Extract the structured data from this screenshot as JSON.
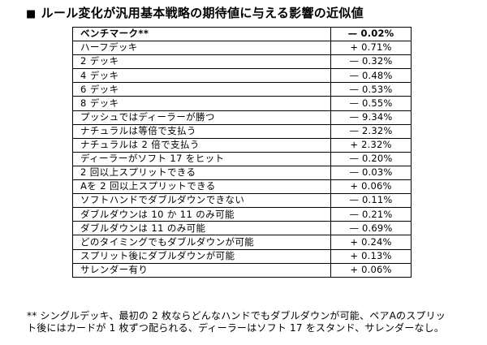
{
  "title": {
    "bullet": "■",
    "text": "ルール変化が汎用基本戦略の期待値に与える影響の近似値"
  },
  "table": {
    "rows": [
      {
        "label": "ベンチマーク**",
        "value": "— 0.02%",
        "bold": true
      },
      {
        "label": "ハーフデッキ",
        "value": "+ 0.71%",
        "bold": false
      },
      {
        "label": "2 デッキ",
        "value": "— 0.32%",
        "bold": false
      },
      {
        "label": "4 デッキ",
        "value": "— 0.48%",
        "bold": false
      },
      {
        "label": "6 デッキ",
        "value": "— 0.53%",
        "bold": false
      },
      {
        "label": "8 デッキ",
        "value": "— 0.55%",
        "bold": false
      },
      {
        "label": "プッシュではディーラーが勝つ",
        "value": "— 9.34%",
        "bold": false
      },
      {
        "label": "ナチュラルは等倍で支払う",
        "value": "— 2.32%",
        "bold": false
      },
      {
        "label": "ナチュラルは 2 倍で支払う",
        "value": "+ 2.32%",
        "bold": false
      },
      {
        "label": "ディーラーがソフト 17 をヒット",
        "value": "— 0.20%",
        "bold": false
      },
      {
        "label": "2 回以上スプリットできる",
        "value": "— 0.03%",
        "bold": false
      },
      {
        "label": "Aを 2 回以上スプリットできる",
        "value": "+ 0.06%",
        "bold": false
      },
      {
        "label": "ソフトハンドでダブルダウンできない",
        "value": "— 0.11%",
        "bold": false
      },
      {
        "label": "ダブルダウンは 10 か 11 のみ可能",
        "value": "— 0.21%",
        "bold": false
      },
      {
        "label": "ダブルダウンは 11 のみ可能",
        "value": "— 0.69%",
        "bold": false
      },
      {
        "label": "どのタイミングでもダブルダウンが可能",
        "value": "+ 0.24%",
        "bold": false
      },
      {
        "label": "スプリット後にダブルダウンが可能",
        "value": "+ 0.13%",
        "bold": false
      },
      {
        "label": "サレンダー有り",
        "value": "+ 0.06%",
        "bold": false
      }
    ]
  },
  "footnote": {
    "lines": [
      "** シングルデッキ、最初の 2 枚ならどんなハンドでもダブルダウンが可能、ペアAのスプリッ",
      "ト後にはカードが 1 枚ずつ配られる、ディーラーはソフト 17 をスタンド、サレンダーなし。"
    ]
  },
  "colors": {
    "text": "#000000",
    "background": "#ffffff",
    "border": "#000000"
  }
}
